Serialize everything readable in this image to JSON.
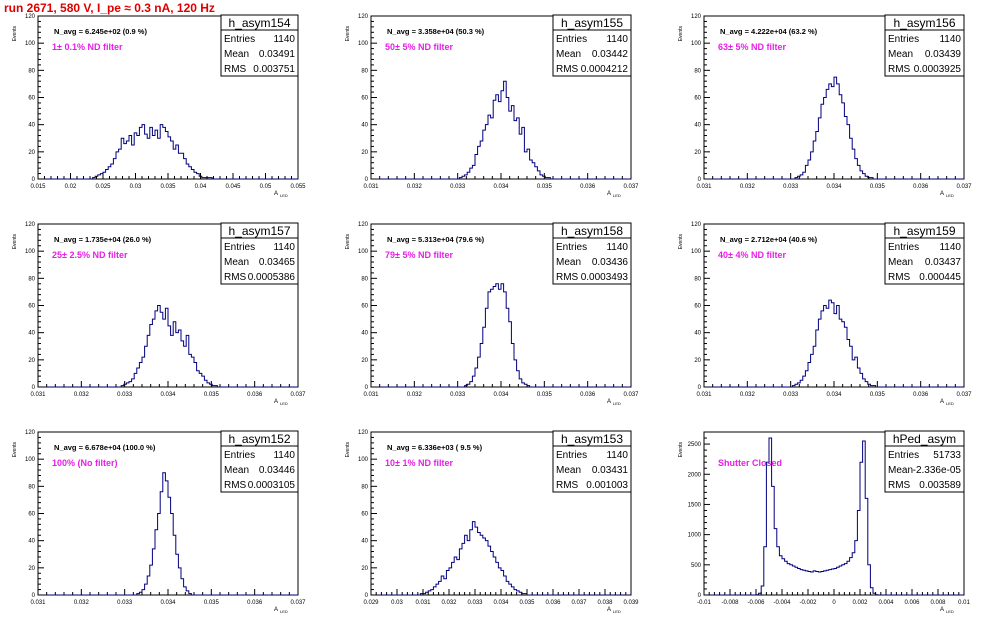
{
  "title": "run 2671,   580 V, I_pe ≈ 0.3 nA, 120 Hz",
  "colors": {
    "hist": "#00007f",
    "annotation": "#e81ee8",
    "title": "#e00000",
    "axis": "#000000"
  },
  "stats_labels": {
    "entries": "Entries",
    "mean": "Mean",
    "rms": "RMS"
  },
  "y_axis_label": "Events",
  "x_axis_label_main": "A",
  "x_axis_label_sub": "LED",
  "chart_data": [
    {
      "type": "bar",
      "name": "h_asym154",
      "navg_text": "N_avg = 6.245e+02  (0.9 %)",
      "annotation": "1± 0.1% ND filter",
      "stats": {
        "entries": "1140",
        "mean": "0.03491",
        "rms": "0.003751"
      },
      "xlim": [
        0.015,
        0.055
      ],
      "ylim": [
        0,
        120
      ],
      "xticks": [
        "0.015",
        "0.02",
        "0.025",
        "0.03",
        "0.035",
        "0.04",
        "0.045",
        "0.05",
        "0.055"
      ],
      "yticks": [
        "0",
        "20",
        "40",
        "60",
        "80",
        "100",
        "120"
      ],
      "bin_edges_start": 0.015,
      "bin_width": 0.0004,
      "values": [
        0,
        0,
        0,
        0,
        0,
        0,
        0,
        0,
        0,
        0,
        0,
        0,
        0,
        0,
        0,
        0,
        0,
        0,
        0,
        0,
        0,
        1,
        2,
        3,
        4,
        5,
        7,
        9,
        11,
        15,
        20,
        22,
        30,
        26,
        28,
        32,
        25,
        34,
        32,
        38,
        40,
        33,
        30,
        38,
        32,
        36,
        30,
        40,
        38,
        35,
        31,
        28,
        22,
        25,
        19,
        19,
        15,
        11,
        9,
        7,
        5,
        4,
        2,
        1,
        1,
        1,
        1,
        0,
        0,
        0,
        0,
        0,
        0,
        0,
        0,
        0,
        0,
        0,
        0,
        0,
        0,
        0,
        0,
        0,
        0,
        0,
        0,
        0,
        0,
        0,
        0,
        0,
        0,
        0,
        0,
        0,
        0,
        0,
        0,
        0,
        0
      ]
    },
    {
      "type": "bar",
      "name": "h_asym155",
      "navg_text": "N_avg = 3.358e+04  (50.3 %)",
      "annotation": "50± 5% ND filter",
      "stats": {
        "entries": "1140",
        "mean": "0.03442",
        "rms": "0.0004212"
      },
      "xlim": [
        0.031,
        0.037
      ],
      "ylim": [
        0,
        120
      ],
      "xticks": [
        "0.031",
        "0.032",
        "0.033",
        "0.034",
        "0.035",
        "0.036",
        "0.037"
      ],
      "yticks": [
        "0",
        "20",
        "40",
        "60",
        "80",
        "100",
        "120"
      ],
      "bin_edges_start": 0.031,
      "bin_width": 6e-05,
      "values": [
        0,
        0,
        0,
        0,
        0,
        0,
        0,
        0,
        0,
        0,
        0,
        0,
        0,
        0,
        0,
        0,
        0,
        0,
        0,
        0,
        0,
        0,
        0,
        0,
        0,
        0,
        0,
        0,
        0,
        0,
        0,
        0,
        0,
        0,
        1,
        2,
        3,
        5,
        8,
        10,
        18,
        24,
        28,
        36,
        40,
        47,
        45,
        58,
        62,
        57,
        65,
        72,
        60,
        50,
        54,
        43,
        45,
        33,
        38,
        20,
        22,
        14,
        12,
        9,
        6,
        3,
        2,
        1,
        1,
        0,
        0,
        0,
        0,
        0,
        0,
        0,
        0,
        0,
        0,
        0,
        0,
        0,
        0,
        0,
        0,
        0,
        0,
        0,
        0,
        0,
        0,
        0,
        0,
        0,
        0,
        0,
        0,
        0,
        0,
        0
      ]
    },
    {
      "type": "bar",
      "name": "h_asym156",
      "navg_text": "N_avg = 4.222e+04  (63.2 %)",
      "annotation": "63± 5% ND filter",
      "stats": {
        "entries": "1140",
        "mean": "0.03439",
        "rms": "0.0003925"
      },
      "xlim": [
        0.031,
        0.037
      ],
      "ylim": [
        0,
        120
      ],
      "xticks": [
        "0.031",
        "0.032",
        "0.033",
        "0.034",
        "0.035",
        "0.036",
        "0.037"
      ],
      "yticks": [
        "0",
        "20",
        "40",
        "60",
        "80",
        "100",
        "120"
      ],
      "bin_edges_start": 0.031,
      "bin_width": 6e-05,
      "values": [
        0,
        0,
        0,
        0,
        0,
        0,
        0,
        0,
        0,
        0,
        0,
        0,
        0,
        0,
        0,
        0,
        0,
        0,
        0,
        0,
        0,
        0,
        0,
        0,
        0,
        0,
        0,
        0,
        0,
        0,
        0,
        0,
        0,
        0,
        0,
        1,
        2,
        3,
        5,
        10,
        14,
        20,
        28,
        35,
        45,
        55,
        60,
        66,
        70,
        68,
        75,
        70,
        62,
        56,
        46,
        40,
        30,
        22,
        15,
        10,
        6,
        4,
        2,
        1,
        1,
        0,
        0,
        0,
        0,
        0,
        0,
        0,
        0,
        0,
        0,
        0,
        0,
        0,
        0,
        0,
        0,
        0,
        0,
        0,
        0,
        0,
        0,
        0,
        0,
        0,
        0,
        0,
        0,
        0,
        0,
        0,
        0,
        0,
        0,
        0
      ]
    },
    {
      "type": "bar",
      "name": "h_asym157",
      "navg_text": "N_avg = 1.735e+04  (26.0 %)",
      "annotation": "25± 2.5% ND filter",
      "stats": {
        "entries": "1140",
        "mean": "0.03465",
        "rms": "0.0005386"
      },
      "xlim": [
        0.031,
        0.037
      ],
      "ylim": [
        0,
        120
      ],
      "xticks": [
        "0.031",
        "0.032",
        "0.033",
        "0.034",
        "0.035",
        "0.036",
        "0.037"
      ],
      "yticks": [
        "0",
        "20",
        "40",
        "60",
        "80",
        "100",
        "120"
      ],
      "bin_edges_start": 0.031,
      "bin_width": 6e-05,
      "values": [
        0,
        0,
        0,
        0,
        0,
        0,
        0,
        0,
        0,
        0,
        0,
        0,
        0,
        0,
        0,
        0,
        0,
        0,
        0,
        0,
        0,
        0,
        0,
        0,
        0,
        0,
        0,
        0,
        0,
        0,
        0,
        0,
        1,
        2,
        3,
        4,
        6,
        10,
        14,
        18,
        22,
        30,
        38,
        46,
        50,
        56,
        60,
        55,
        50,
        58,
        45,
        38,
        48,
        40,
        42,
        34,
        30,
        38,
        24,
        22,
        18,
        12,
        10,
        8,
        5,
        3,
        2,
        1,
        1,
        0,
        0,
        0,
        0,
        0,
        0,
        0,
        0,
        0,
        0,
        0,
        0,
        0,
        0,
        0,
        0,
        0,
        0,
        0,
        0,
        0,
        0,
        0,
        0,
        0,
        0,
        0,
        0,
        0,
        0,
        0
      ]
    },
    {
      "type": "bar",
      "name": "h_asym158",
      "navg_text": "N_avg = 5.313e+04  (79.6 %)",
      "annotation": "79± 5% ND filter",
      "stats": {
        "entries": "1140",
        "mean": "0.03436",
        "rms": "0.0003493"
      },
      "xlim": [
        0.031,
        0.037
      ],
      "ylim": [
        0,
        120
      ],
      "xticks": [
        "0.031",
        "0.032",
        "0.033",
        "0.034",
        "0.035",
        "0.036",
        "0.037"
      ],
      "yticks": [
        "0",
        "20",
        "40",
        "60",
        "80",
        "100",
        "120"
      ],
      "bin_edges_start": 0.031,
      "bin_width": 6e-05,
      "values": [
        0,
        0,
        0,
        0,
        0,
        0,
        0,
        0,
        0,
        0,
        0,
        0,
        0,
        0,
        0,
        0,
        0,
        0,
        0,
        0,
        0,
        0,
        0,
        0,
        0,
        0,
        0,
        0,
        0,
        0,
        0,
        0,
        0,
        0,
        0,
        0,
        1,
        2,
        4,
        8,
        14,
        22,
        32,
        44,
        58,
        70,
        72,
        74,
        76,
        72,
        76,
        70,
        58,
        48,
        32,
        20,
        12,
        6,
        3,
        2,
        1,
        0,
        0,
        0,
        0,
        0,
        0,
        0,
        0,
        0,
        0,
        0,
        0,
        0,
        0,
        0,
        0,
        0,
        0,
        0,
        0,
        0,
        0,
        0,
        0,
        0,
        0,
        0,
        0,
        0,
        0,
        0,
        0,
        0,
        0,
        0,
        0,
        0,
        0,
        0
      ]
    },
    {
      "type": "bar",
      "name": "h_asym159",
      "navg_text": "N_avg = 2.712e+04  (40.6 %)",
      "annotation": "40± 4% ND filter",
      "stats": {
        "entries": "1140",
        "mean": "0.03437",
        "rms": "0.000445"
      },
      "xlim": [
        0.031,
        0.037
      ],
      "ylim": [
        0,
        120
      ],
      "xticks": [
        "0.031",
        "0.032",
        "0.033",
        "0.034",
        "0.035",
        "0.036",
        "0.037"
      ],
      "yticks": [
        "0",
        "20",
        "40",
        "60",
        "80",
        "100",
        "120"
      ],
      "bin_edges_start": 0.031,
      "bin_width": 6e-05,
      "values": [
        0,
        0,
        0,
        0,
        0,
        0,
        0,
        0,
        0,
        0,
        0,
        0,
        0,
        0,
        0,
        0,
        0,
        0,
        0,
        0,
        0,
        0,
        0,
        0,
        0,
        0,
        0,
        0,
        0,
        0,
        0,
        0,
        0,
        0,
        1,
        2,
        3,
        5,
        8,
        12,
        18,
        24,
        30,
        42,
        50,
        56,
        60,
        58,
        64,
        62,
        54,
        60,
        50,
        48,
        44,
        35,
        30,
        20,
        22,
        14,
        10,
        6,
        4,
        2,
        1,
        1,
        0,
        0,
        0,
        0,
        0,
        0,
        0,
        0,
        0,
        0,
        0,
        0,
        0,
        0,
        0,
        0,
        0,
        0,
        0,
        0,
        0,
        0,
        0,
        0,
        0,
        0,
        0,
        0,
        0,
        0,
        0,
        0,
        0,
        0
      ]
    },
    {
      "type": "bar",
      "name": "h_asym152",
      "navg_text": "N_avg = 6.678e+04  (100.0 %)",
      "annotation": "100% (No filter)",
      "stats": {
        "entries": "1140",
        "mean": "0.03446",
        "rms": "0.0003105"
      },
      "xlim": [
        0.031,
        0.037
      ],
      "ylim": [
        0,
        120
      ],
      "xticks": [
        "0.031",
        "0.032",
        "0.033",
        "0.034",
        "0.035",
        "0.036",
        "0.037"
      ],
      "yticks": [
        "0",
        "20",
        "40",
        "60",
        "80",
        "100",
        "120"
      ],
      "bin_edges_start": 0.031,
      "bin_width": 6e-05,
      "values": [
        0,
        0,
        0,
        0,
        0,
        0,
        0,
        0,
        0,
        0,
        0,
        0,
        0,
        0,
        0,
        0,
        0,
        0,
        0,
        0,
        0,
        0,
        0,
        0,
        0,
        0,
        0,
        0,
        0,
        0,
        0,
        0,
        0,
        0,
        0,
        0,
        0,
        0,
        1,
        2,
        4,
        8,
        14,
        22,
        34,
        48,
        60,
        76,
        90,
        84,
        72,
        60,
        44,
        30,
        20,
        12,
        6,
        3,
        1,
        0,
        0,
        0,
        0,
        0,
        0,
        0,
        0,
        0,
        0,
        0,
        0,
        0,
        0,
        0,
        0,
        0,
        0,
        0,
        0,
        0,
        0,
        0,
        0,
        0,
        0,
        0,
        0,
        0,
        0,
        0,
        0,
        0,
        0,
        0,
        0,
        0,
        0,
        0,
        0,
        0
      ]
    },
    {
      "type": "bar",
      "name": "h_asym153",
      "navg_text": "N_avg = 6.336e+03  ( 9.5 %)",
      "annotation": "10± 1% ND filter",
      "stats": {
        "entries": "1140",
        "mean": "0.03431",
        "rms": "0.001003"
      },
      "xlim": [
        0.029,
        0.039
      ],
      "ylim": [
        0,
        120
      ],
      "xticks": [
        "0.029",
        "0.03",
        "0.031",
        "0.032",
        "0.033",
        "0.034",
        "0.035",
        "0.036",
        "0.037",
        "0.038",
        "0.039"
      ],
      "yticks": [
        "0",
        "20",
        "40",
        "60",
        "80",
        "100",
        "120"
      ],
      "bin_edges_start": 0.029,
      "bin_width": 0.0001,
      "values": [
        0,
        0,
        0,
        0,
        0,
        0,
        0,
        0,
        0,
        0,
        0,
        0,
        0,
        0,
        0,
        0,
        0,
        0,
        0,
        1,
        1,
        2,
        3,
        4,
        6,
        8,
        10,
        14,
        12,
        18,
        20,
        24,
        28,
        26,
        34,
        38,
        44,
        40,
        48,
        54,
        50,
        46,
        44,
        42,
        40,
        36,
        32,
        28,
        24,
        20,
        18,
        14,
        10,
        8,
        6,
        4,
        3,
        2,
        1,
        1,
        0,
        0,
        0,
        0,
        0,
        0,
        0,
        0,
        0,
        0,
        0,
        0,
        0,
        0,
        0,
        0,
        0,
        0,
        0,
        0,
        0,
        0,
        0,
        0,
        0,
        0,
        0,
        0,
        0,
        0,
        0,
        0,
        0,
        0,
        0,
        0,
        0,
        0,
        0,
        0
      ]
    },
    {
      "type": "bar",
      "name": "hPed_asym",
      "navg_text": "",
      "annotation": "Shutter Closed",
      "stats": {
        "entries": "51733",
        "mean": "-2.336e-05",
        "rms": "0.003589"
      },
      "xlim": [
        -0.01,
        0.01
      ],
      "ylim": [
        0,
        2700
      ],
      "xticks": [
        "-0.01",
        "-0.008",
        "-0.006",
        "-0.004",
        "-0.002",
        "0",
        "0.002",
        "0.004",
        "0.006",
        "0.008",
        "0.01"
      ],
      "yticks": [
        "0",
        "500",
        "1000",
        "1500",
        "2000",
        "2500"
      ],
      "bin_edges_start": -0.01,
      "bin_width": 0.0002,
      "values": [
        0,
        0,
        0,
        0,
        0,
        0,
        0,
        0,
        0,
        0,
        0,
        0,
        0,
        0,
        0,
        0,
        0,
        0,
        0,
        0,
        5,
        30,
        150,
        800,
        2200,
        2600,
        1800,
        1100,
        800,
        650,
        600,
        560,
        520,
        500,
        480,
        460,
        440,
        420,
        410,
        400,
        390,
        380,
        400,
        390,
        380,
        390,
        400,
        410,
        420,
        430,
        440,
        460,
        480,
        500,
        520,
        560,
        620,
        700,
        900,
        1400,
        2200,
        2550,
        1600,
        500,
        120,
        30,
        5,
        0,
        0,
        0,
        0,
        0,
        0,
        0,
        0,
        0,
        0,
        0,
        0,
        0,
        0,
        0,
        0,
        0,
        0,
        0,
        0,
        0,
        0,
        0,
        0,
        0,
        0,
        0,
        0,
        0,
        0,
        0,
        0,
        0
      ]
    }
  ]
}
